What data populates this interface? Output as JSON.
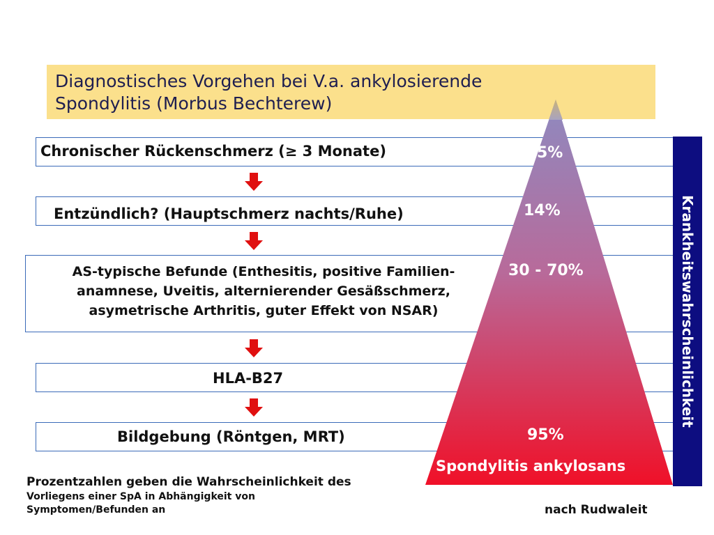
{
  "title": {
    "line1": "Diagnostisches Vorgehen bei V.a. ankylosierende",
    "line2": "Spondylitis (Morbus Bechterew)"
  },
  "steps": [
    {
      "label": "Chronischer Rückenschmerz (≥ 3 Monate)"
    },
    {
      "label": "Entzündlich? (Hauptschmerz nachts/Ruhe)"
    },
    {
      "lines": [
        "AS-typische Befunde (Enthesitis, positive Familien-",
        "anamnese, Uveitis, alternierender Gesäßschmerz,",
        "asymetrische Arthritis, guter Effekt von NSAR)"
      ]
    },
    {
      "label": "HLA-B27"
    },
    {
      "label": "Bildgebung (Röntgen, MRT)"
    }
  ],
  "probabilities": [
    "5%",
    "14%",
    "30 - 70%",
    "95%"
  ],
  "pyramid_base_label": "Spondylitis ankylosans",
  "side_label": "Krankheitswahrscheinlichkeit",
  "footnote": {
    "line1": "Prozentzahlen geben die Wahrscheinlichkeit des",
    "line2": "Vorliegens  einer SpA in Abhängigkeit von",
    "line3": "Symptomen/Befunden an"
  },
  "source": "nach Rudwaleit",
  "colors": {
    "title_bg": "#fbe08c",
    "box_border": "#3a6ab8",
    "arrow": "#e01010",
    "pyramid_top": "#8e8ac0",
    "pyramid_bottom": "#f01028",
    "side_bar": "#0d0d80"
  }
}
